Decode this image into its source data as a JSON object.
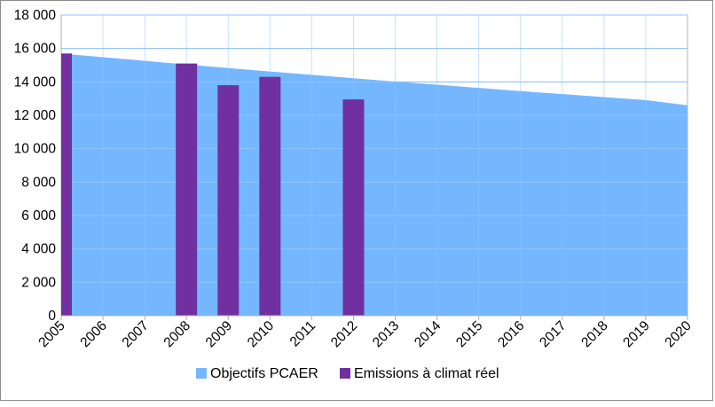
{
  "chart_data": {
    "type": "bar",
    "categories": [
      "2005",
      "2006",
      "2007",
      "2008",
      "2009",
      "2010",
      "2011",
      "2012",
      "2013",
      "2014",
      "2015",
      "2016",
      "2017",
      "2018",
      "2019",
      "2020"
    ],
    "y_tick_labels": [
      "0",
      "2 000",
      "4 000",
      "6 000",
      "8 000",
      "10 000",
      "12 000",
      "14 000",
      "16 000",
      "18 000"
    ],
    "ylim": [
      0,
      18000
    ],
    "y_tick_values": [
      0,
      2000,
      4000,
      6000,
      8000,
      10000,
      12000,
      14000,
      16000,
      18000
    ],
    "grid": true,
    "legend_position": "bottom",
    "series": [
      {
        "name": "Objectifs PCAER",
        "type": "area",
        "color": "#75b7ff",
        "values": [
          15700,
          15480,
          15260,
          15040,
          14830,
          14620,
          14420,
          14220,
          14020,
          13830,
          13640,
          13450,
          13270,
          13090,
          12910,
          12600
        ]
      },
      {
        "name": "Emissions à climat réel",
        "type": "bar",
        "color": "#7030a0",
        "values": [
          15700,
          null,
          null,
          15100,
          13800,
          14300,
          null,
          12950,
          null,
          null,
          null,
          null,
          null,
          null,
          null,
          null
        ]
      }
    ]
  }
}
